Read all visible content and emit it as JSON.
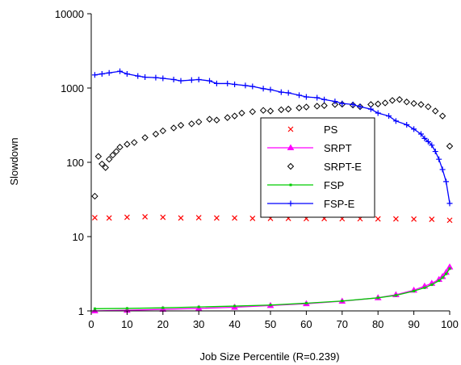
{
  "chart_data": {
    "type": "line",
    "xlabel": "Job Size Percentile (R=0.239)",
    "ylabel": "Slowdown",
    "xlim": [
      0,
      100
    ],
    "ylim": [
      1,
      10000
    ],
    "yscale": "log",
    "xticks": [
      "0",
      "10",
      "20",
      "30",
      "40",
      "50",
      "60",
      "70",
      "80",
      "90",
      "100"
    ],
    "yticks": [
      "1",
      "10",
      "100",
      "1000",
      "10000"
    ],
    "legend_position": "center-right",
    "series": [
      {
        "name": "PS",
        "color": "#ff0000",
        "marker": "x",
        "line": false,
        "x": [
          1,
          5,
          10,
          15,
          20,
          25,
          30,
          35,
          40,
          45,
          50,
          55,
          60,
          65,
          70,
          75,
          80,
          85,
          90,
          95,
          100
        ],
        "y": [
          18,
          17.8,
          18.2,
          18.5,
          18.2,
          17.8,
          18,
          17.8,
          17.8,
          17.6,
          17.6,
          17.6,
          17.5,
          17.5,
          17.4,
          17.4,
          17.3,
          17.3,
          17.2,
          17.1,
          16.6
        ]
      },
      {
        "name": "SRPT",
        "color": "#ff00ff",
        "marker": "triangle",
        "line": true,
        "x": [
          1,
          10,
          20,
          30,
          40,
          50,
          60,
          70,
          80,
          85,
          90,
          93,
          95,
          97,
          98,
          99,
          100
        ],
        "y": [
          1.0,
          1.02,
          1.05,
          1.08,
          1.12,
          1.18,
          1.25,
          1.35,
          1.5,
          1.65,
          1.9,
          2.15,
          2.35,
          2.65,
          2.9,
          3.3,
          3.9
        ]
      },
      {
        "name": "SRPT-E",
        "color": "#000000",
        "marker": "diamond",
        "line": false,
        "x": [
          1,
          2,
          3,
          4,
          5,
          6,
          7,
          8,
          10,
          12,
          15,
          18,
          20,
          23,
          25,
          28,
          30,
          33,
          35,
          38,
          40,
          42,
          45,
          48,
          50,
          53,
          55,
          58,
          60,
          63,
          65,
          68,
          70,
          73,
          75,
          78,
          80,
          82,
          84,
          86,
          88,
          90,
          92,
          94,
          96,
          98,
          100
        ],
        "y": [
          35,
          120,
          95,
          85,
          110,
          125,
          140,
          160,
          175,
          185,
          215,
          240,
          265,
          290,
          315,
          330,
          350,
          380,
          370,
          400,
          420,
          460,
          480,
          500,
          490,
          510,
          520,
          540,
          555,
          570,
          580,
          600,
          605,
          590,
          560,
          600,
          610,
          630,
          680,
          700,
          650,
          620,
          600,
          560,
          490,
          420,
          165
        ]
      },
      {
        "name": "FSP",
        "color": "#00cc00",
        "marker": "dot",
        "line": true,
        "x": [
          1,
          10,
          20,
          30,
          40,
          50,
          60,
          70,
          80,
          85,
          90,
          93,
          95,
          97,
          98,
          99,
          100
        ],
        "y": [
          1.07,
          1.08,
          1.1,
          1.13,
          1.16,
          1.2,
          1.27,
          1.36,
          1.5,
          1.62,
          1.85,
          2.05,
          2.25,
          2.55,
          2.8,
          3.15,
          3.7
        ]
      },
      {
        "name": "FSP-E",
        "color": "#0000ff",
        "marker": "plus",
        "line": true,
        "x": [
          1,
          3,
          5,
          8,
          10,
          13,
          15,
          18,
          20,
          23,
          25,
          28,
          30,
          33,
          35,
          38,
          40,
          43,
          45,
          48,
          50,
          53,
          55,
          58,
          60,
          63,
          65,
          68,
          70,
          73,
          75,
          78,
          80,
          83,
          85,
          88,
          90,
          92,
          93,
          94,
          95,
          96,
          97,
          98,
          99,
          100
        ],
        "y": [
          1500,
          1550,
          1600,
          1680,
          1550,
          1450,
          1400,
          1380,
          1350,
          1300,
          1250,
          1280,
          1300,
          1250,
          1150,
          1150,
          1120,
          1080,
          1050,
          980,
          950,
          880,
          860,
          800,
          760,
          740,
          700,
          660,
          620,
          600,
          560,
          520,
          460,
          420,
          360,
          320,
          280,
          240,
          210,
          190,
          170,
          140,
          110,
          80,
          55,
          28
        ]
      }
    ]
  }
}
